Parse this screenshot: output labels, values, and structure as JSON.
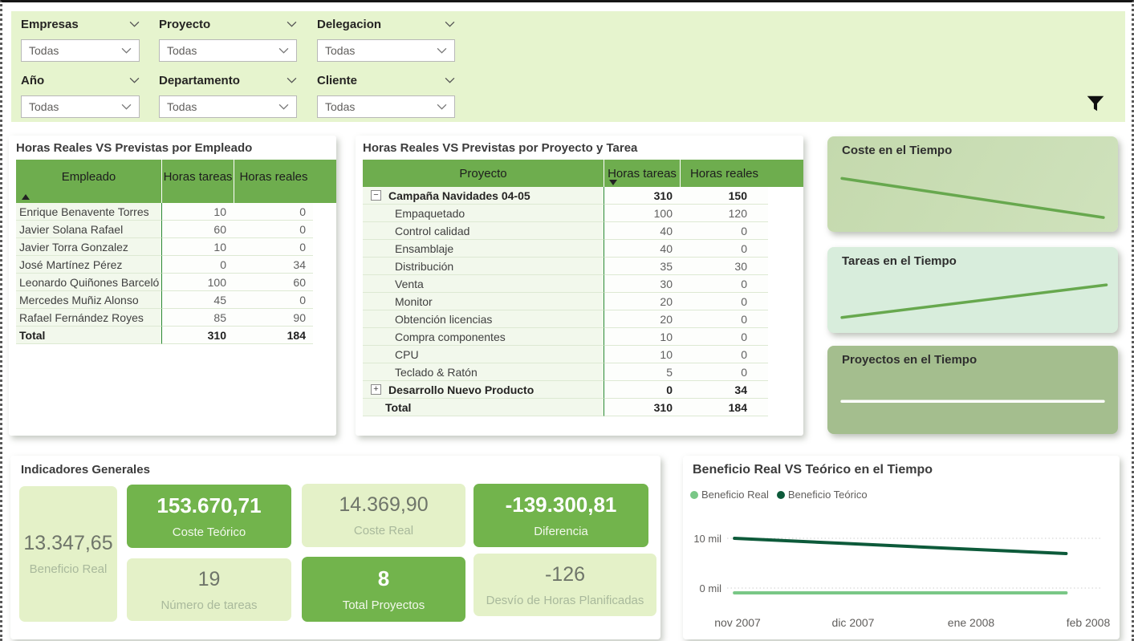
{
  "filter_bar": {
    "slicers": [
      {
        "label": "Empresas",
        "value": "Todas"
      },
      {
        "label": "Proyecto",
        "value": "Todas"
      },
      {
        "label": "Delegacion",
        "value": "Todas"
      },
      {
        "label": "Año",
        "value": "Todas"
      },
      {
        "label": "Departamento",
        "value": "Todas"
      },
      {
        "label": "Cliente",
        "value": "Todas"
      }
    ]
  },
  "icons": {
    "filter": "funnel-icon",
    "slicer_chevron": "chevron-down-icon",
    "sort_ascending": "triangle-up-icon",
    "sort_descending": "triangle-down-icon",
    "collapse": "minus-box-icon",
    "expand": "plus-box-icon",
    "legend_dot": "circle-icon"
  },
  "employee_table": {
    "title": "Horas Reales VS Previstas por Empleado",
    "columns": [
      "Empleado",
      "Horas tareas",
      "Horas reales"
    ],
    "sorted_by": "Empleado ascending",
    "rows": [
      [
        "Enrique Benavente Torres",
        "10",
        "0"
      ],
      [
        "Javier Solana Rafael",
        "60",
        "0"
      ],
      [
        "Javier Torra Gonzalez",
        "10",
        "0"
      ],
      [
        "José Martínez Pérez",
        "0",
        "34"
      ],
      [
        "Leonardo Quiñones Barceló",
        "100",
        "60"
      ],
      [
        "Mercedes Muñiz Alonso",
        "45",
        "0"
      ],
      [
        "Rafael Fernández Royes",
        "85",
        "90"
      ]
    ],
    "total": [
      "Total",
      "310",
      "184"
    ]
  },
  "project_table": {
    "title": "Horas Reales VS Previstas por Proyecto y Tarea",
    "columns": [
      "Proyecto",
      "Horas tareas",
      "Horas reales"
    ],
    "sorted_by": "Horas tareas descending",
    "rows": [
      {
        "glyph": "−",
        "label": "Campaña Navidades 04-05",
        "tareas": "310",
        "reales": "150"
      },
      {
        "label": "Empaquetado",
        "tareas": "100",
        "reales": "120"
      },
      {
        "label": "Control calidad",
        "tareas": "40",
        "reales": "0"
      },
      {
        "label": "Ensamblaje",
        "tareas": "40",
        "reales": "0"
      },
      {
        "label": "Distribución",
        "tareas": "35",
        "reales": "30"
      },
      {
        "label": "Venta",
        "tareas": "30",
        "reales": "0"
      },
      {
        "label": "Monitor",
        "tareas": "20",
        "reales": "0"
      },
      {
        "label": "Obtención licencias",
        "tareas": "20",
        "reales": "0"
      },
      {
        "label": "Compra componentes",
        "tareas": "10",
        "reales": "0"
      },
      {
        "label": "CPU",
        "tareas": "10",
        "reales": "0"
      },
      {
        "label": "Teclado & Ratón",
        "tareas": "5",
        "reales": "0"
      },
      {
        "glyph": "+",
        "label": "Desarrollo Nuevo Producto",
        "tareas": "0",
        "reales": "34"
      }
    ],
    "total": {
      "label": "Total",
      "tareas": "310",
      "reales": "184"
    }
  },
  "kpi_panel": {
    "title": "Indicadores Generales",
    "cards": [
      {
        "value": "13.347,65",
        "label": "Beneficio Real",
        "variant": "light"
      },
      {
        "value": "153.670,71",
        "label": "Coste Teórico",
        "variant": "green"
      },
      {
        "value": "14.369,90",
        "label": "Coste Real",
        "variant": "light"
      },
      {
        "value": "-139.300,81",
        "label": "Diferencia",
        "variant": "green"
      },
      {
        "value": "19",
        "label": "Número de tareas",
        "variant": "light"
      },
      {
        "value": "8",
        "label": "Total Proyectos",
        "variant": "green"
      },
      {
        "value": "-126",
        "label": "Desvío de Horas Planificadas",
        "variant": "light"
      }
    ],
    "colors": {
      "green_card": "#72b44c",
      "light_card": "#e4f1c8"
    }
  },
  "chart_data": [
    {
      "type": "line",
      "title": "Coste en el Tiempo",
      "axes": "hidden",
      "series": [
        {
          "name": "Coste",
          "trend": "decreasing",
          "color": "#67a84e",
          "points_pct": [
            [
              5,
              44
            ],
            [
              95,
              85
            ]
          ]
        }
      ]
    },
    {
      "type": "line",
      "title": "Tareas en el Tiempo",
      "axes": "hidden",
      "series": [
        {
          "name": "Tareas",
          "trend": "increasing",
          "color": "#67a84e",
          "points_pct": [
            [
              5,
              82
            ],
            [
              96,
              44
            ]
          ]
        }
      ]
    },
    {
      "type": "line",
      "title": "Proyectos en el Tiempo",
      "axes": "hidden",
      "series": [
        {
          "name": "Proyectos",
          "trend": "flat",
          "color": "#ffffff",
          "points_pct": [
            [
              5,
              63
            ],
            [
              95,
              63
            ]
          ]
        }
      ]
    },
    {
      "type": "line",
      "title": "Beneficio Real VS Teórico en el Tiempo",
      "x": [
        "nov 2007",
        "dic 2007",
        "ene 2008",
        "feb 2008"
      ],
      "yticks": [
        "10 mil",
        "0 mil"
      ],
      "ylim_mil": [
        -2.5,
        13
      ],
      "grid": "dotted horizontal",
      "legend_position": "top-left",
      "series": [
        {
          "name": "Beneficio Real",
          "color": "#79c786",
          "values_mil": [
            -1.0,
            -1.0,
            -1.0,
            -1.0
          ],
          "points_pct": [
            [
              1.9,
              86
            ],
            [
              30,
              86
            ],
            [
              59,
              86
            ],
            [
              88,
              86
            ]
          ]
        },
        {
          "name": "Beneficio Teórico",
          "color": "#0d5a3a",
          "values_mil": [
            10.0,
            9.0,
            8.0,
            6.9
          ],
          "points_pct": [
            [
              1.9,
              18
            ],
            [
              30,
              24.3
            ],
            [
              59,
              30.7
            ],
            [
              88,
              37
            ]
          ]
        }
      ]
    }
  ]
}
